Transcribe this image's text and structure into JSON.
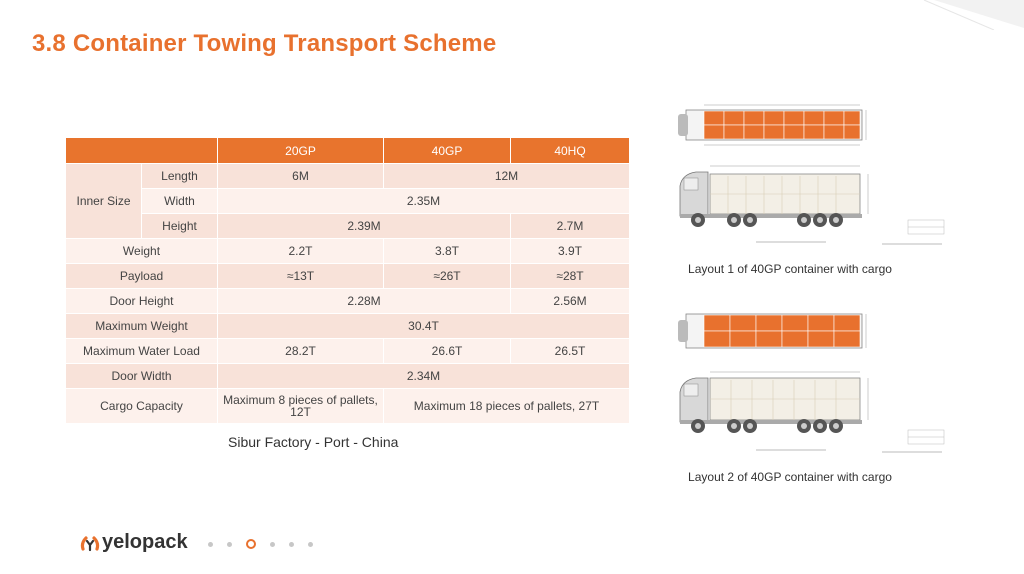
{
  "slide": {
    "title": "3.8  Container Towing Transport Scheme",
    "route": "Sibur Factory - Port - China"
  },
  "table": {
    "headers": [
      "",
      "20GP",
      "40GP",
      "40HQ"
    ],
    "inner_size_label": "Inner Size",
    "length_label": "Length",
    "length_20gp": "6M",
    "length_40": "12M",
    "width_label": "Width",
    "width_all": "2.35M",
    "height_label": "Height",
    "height_20_40gp": "2.39M",
    "height_40hq": "2.7M",
    "weight_label": "Weight",
    "weight_20gp": "2.2T",
    "weight_40gp": "3.8T",
    "weight_40hq": "3.9T",
    "payload_label": "Payload",
    "payload_20gp": "≈13T",
    "payload_40gp": "≈26T",
    "payload_40hq": "≈28T",
    "door_height_label": "Door Height",
    "door_height_20_40gp": "2.28M",
    "door_height_40hq": "2.56M",
    "max_weight_label": "Maximum Weight",
    "max_weight_all": "30.4T",
    "max_water_label": "Maximum Water Load",
    "max_water_20gp": "28.2T",
    "max_water_40gp": "26.6T",
    "max_water_40hq": "26.5T",
    "door_width_label": "Door Width",
    "door_width_all": "2.34M",
    "cargo_label": "Cargo Capacity",
    "cargo_20gp": "Maximum 8 pieces of pallets, 12T",
    "cargo_40": "Maximum 18 pieces of pallets, 27T"
  },
  "layouts": [
    {
      "caption": "Layout 1 of 40GP container with cargo"
    },
    {
      "caption": "Layout 2 of 40GP container with cargo"
    }
  ],
  "brand": {
    "name": "yelopack",
    "accent": "#e8712e"
  },
  "pager": {
    "count": 6,
    "active": 3
  }
}
